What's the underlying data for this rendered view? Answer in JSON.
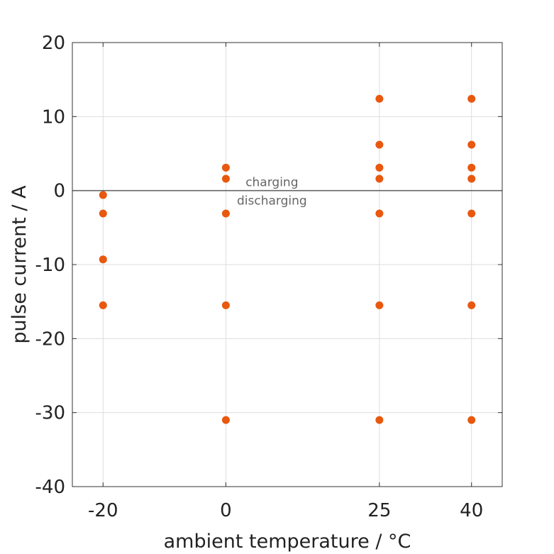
{
  "chart_data": {
    "type": "scatter",
    "xlabel": "ambient temperature / °C",
    "ylabel": "pulse current / A",
    "x_ticks": [
      -20,
      0,
      25,
      40
    ],
    "x_tick_labels": [
      "-20",
      "0",
      "25",
      "40"
    ],
    "y_ticks": [
      20,
      10,
      0,
      -10,
      -20,
      -30,
      -40
    ],
    "y_tick_labels": [
      "20",
      "10",
      "0",
      "-10",
      "-20",
      "-30",
      "-40"
    ],
    "xlim": [
      -25,
      45
    ],
    "ylim": [
      -40,
      20
    ],
    "grid": true,
    "reference_line_y": 0,
    "annotations": {
      "above": "charging",
      "below": "discharging"
    },
    "marker_color": "#e8580e",
    "points": [
      {
        "x": -20,
        "y": -0.6
      },
      {
        "x": -20,
        "y": -3.1
      },
      {
        "x": -20,
        "y": -9.3
      },
      {
        "x": -20,
        "y": -15.5
      },
      {
        "x": 0,
        "y": 3.1
      },
      {
        "x": 0,
        "y": 1.6
      },
      {
        "x": 0,
        "y": -3.1
      },
      {
        "x": 0,
        "y": -15.5
      },
      {
        "x": 0,
        "y": -31
      },
      {
        "x": 25,
        "y": 12.4
      },
      {
        "x": 25,
        "y": 6.2
      },
      {
        "x": 25,
        "y": 3.1
      },
      {
        "x": 25,
        "y": 1.6
      },
      {
        "x": 25,
        "y": -3.1
      },
      {
        "x": 25,
        "y": -15.5
      },
      {
        "x": 25,
        "y": -31
      },
      {
        "x": 40,
        "y": 12.4
      },
      {
        "x": 40,
        "y": 6.2
      },
      {
        "x": 40,
        "y": 3.1
      },
      {
        "x": 40,
        "y": 1.6
      },
      {
        "x": 40,
        "y": -3.1
      },
      {
        "x": 40,
        "y": -15.5
      },
      {
        "x": 40,
        "y": -31
      }
    ]
  }
}
